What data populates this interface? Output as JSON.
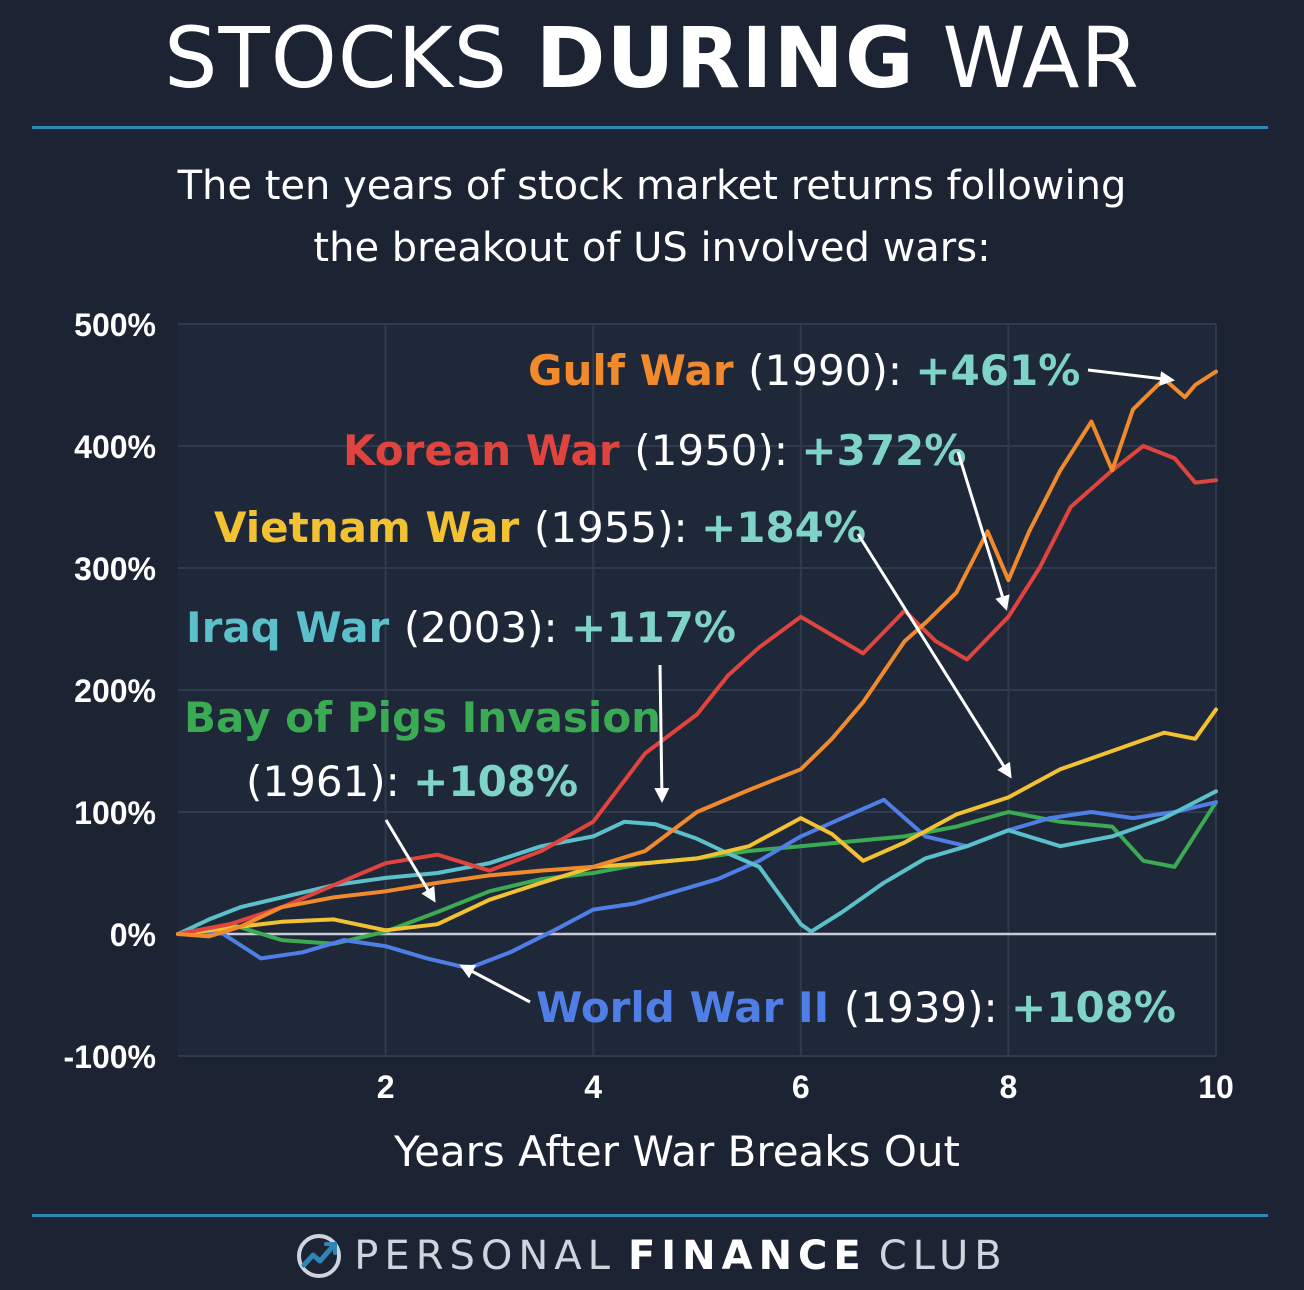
{
  "header": {
    "title_light_1": "STOCKS",
    "title_bold": "DURING",
    "title_light_2": "WAR",
    "subtitle_line1": "The ten years of stock market returns following",
    "subtitle_line2": "the breakout of US involved wars:"
  },
  "footer": {
    "brand_light_1": "PERSONAL",
    "brand_bold": "FINANCE",
    "brand_light_2": "CLUB",
    "logo_icon": "trending-up-circle-icon"
  },
  "colors": {
    "background": "#1c2433",
    "accent_rule": "#2e86b7",
    "value_teal": "#7fd3c8"
  },
  "chart_data": {
    "type": "line",
    "xlabel": "Years After War Breaks Out",
    "ylabel": "",
    "xlim": [
      0,
      10
    ],
    "ylim": [
      -100,
      500
    ],
    "x_ticks": [
      2,
      4,
      6,
      8,
      10
    ],
    "y_ticks": [
      -100,
      0,
      100,
      200,
      300,
      400,
      500
    ],
    "y_tick_labels": [
      "-100%",
      "0%",
      "100%",
      "200%",
      "300%",
      "400%",
      "500%"
    ],
    "grid": true,
    "series": [
      {
        "name": "Gulf War",
        "year": "(1990):",
        "final": "+461%",
        "color": "#f08a2c",
        "x": [
          0,
          0.3,
          0.6,
          1,
          1.5,
          2,
          2.5,
          3,
          3.5,
          4,
          4.5,
          5,
          5.5,
          6,
          6.3,
          6.6,
          7,
          7.2,
          7.5,
          7.8,
          8,
          8.2,
          8.5,
          8.8,
          9,
          9.2,
          9.5,
          9.7,
          9.8,
          10
        ],
        "y": [
          0,
          -2,
          6,
          22,
          30,
          35,
          42,
          48,
          52,
          55,
          68,
          100,
          118,
          135,
          160,
          190,
          240,
          255,
          280,
          330,
          290,
          330,
          380,
          420,
          380,
          430,
          455,
          440,
          450,
          461
        ]
      },
      {
        "name": "Korean War",
        "year": "(1950):",
        "final": "+372%",
        "color": "#e0443e",
        "x": [
          0,
          0.5,
          1,
          1.5,
          2,
          2.5,
          3,
          3.5,
          4,
          4.5,
          5,
          5.3,
          5.6,
          6,
          6.3,
          6.6,
          7,
          7.3,
          7.6,
          8,
          8.3,
          8.6,
          9,
          9.3,
          9.6,
          9.8,
          10
        ],
        "y": [
          0,
          8,
          22,
          40,
          58,
          65,
          52,
          68,
          92,
          148,
          180,
          212,
          235,
          260,
          245,
          230,
          265,
          240,
          225,
          260,
          300,
          350,
          380,
          400,
          390,
          370,
          372
        ]
      },
      {
        "name": "Vietnam War",
        "year": "(1955):",
        "final": "+184%",
        "color": "#f2c233",
        "x": [
          0,
          0.5,
          1,
          1.5,
          2,
          2.5,
          3,
          3.5,
          4,
          4.5,
          5,
          5.5,
          6,
          6.3,
          6.6,
          7,
          7.5,
          8,
          8.5,
          9,
          9.5,
          9.8,
          10
        ],
        "y": [
          0,
          5,
          10,
          12,
          3,
          8,
          28,
          42,
          55,
          58,
          62,
          72,
          95,
          82,
          60,
          75,
          98,
          112,
          135,
          150,
          165,
          160,
          184
        ]
      },
      {
        "name": "Iraq War",
        "year": "(2003):",
        "final": "+117%",
        "color": "#5bc0c9",
        "x": [
          0,
          0.3,
          0.6,
          1,
          1.5,
          2,
          2.5,
          3,
          3.5,
          4,
          4.3,
          4.6,
          5,
          5.3,
          5.6,
          6,
          6.1,
          6.4,
          6.8,
          7.2,
          7.6,
          8,
          8.5,
          9,
          9.5,
          10
        ],
        "y": [
          0,
          12,
          22,
          30,
          40,
          46,
          50,
          58,
          72,
          80,
          92,
          90,
          78,
          66,
          55,
          8,
          2,
          18,
          42,
          62,
          72,
          85,
          72,
          80,
          95,
          117
        ]
      },
      {
        "name": "Bay of Pigs Invasion",
        "year": "(1961):",
        "final": "+108%",
        "color": "#3aaa53",
        "x": [
          0,
          0.5,
          1,
          1.5,
          2,
          2.5,
          3,
          3.5,
          4,
          4.5,
          5,
          5.5,
          6,
          6.5,
          7,
          7.5,
          8,
          8.5,
          9,
          9.3,
          9.6,
          10
        ],
        "y": [
          0,
          8,
          -5,
          -8,
          2,
          18,
          35,
          45,
          50,
          58,
          62,
          68,
          72,
          76,
          80,
          88,
          100,
          92,
          88,
          60,
          55,
          108
        ]
      },
      {
        "name": "World War II",
        "year": "(1939):",
        "final": "+108%",
        "color": "#4f7fe6",
        "x": [
          0,
          0.4,
          0.8,
          1.2,
          1.6,
          2,
          2.4,
          2.8,
          3.2,
          3.6,
          4,
          4.4,
          4.8,
          5.2,
          5.6,
          6,
          6.4,
          6.8,
          7.2,
          7.6,
          8,
          8.4,
          8.8,
          9.2,
          9.6,
          10
        ],
        "y": [
          0,
          2,
          -20,
          -15,
          -5,
          -10,
          -20,
          -28,
          -15,
          2,
          20,
          25,
          35,
          45,
          60,
          80,
          95,
          110,
          80,
          72,
          85,
          95,
          100,
          95,
          100,
          108
        ]
      }
    ]
  }
}
